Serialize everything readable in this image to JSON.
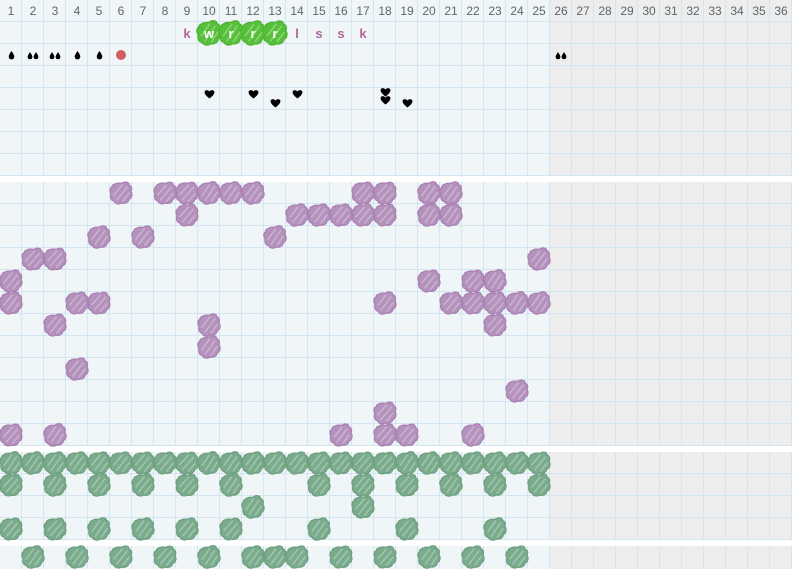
{
  "columns": {
    "count": 36,
    "active": 25,
    "day_numbers": [
      "1",
      "2",
      "3",
      "4",
      "5",
      "6",
      "7",
      "8",
      "9",
      "10",
      "11",
      "12",
      "13",
      "14",
      "15",
      "16",
      "17",
      "18",
      "19",
      "20",
      "21",
      "22",
      "23",
      "24",
      "25",
      "26",
      "27",
      "28",
      "29",
      "30",
      "31",
      "32",
      "33",
      "34",
      "35",
      "36"
    ]
  },
  "colors": {
    "background_active": "#f0f6f8",
    "background_inactive": "#ecedec",
    "grid_line": "#d2e5f0",
    "day_number_text": "#5e666b",
    "letter_text": "#b2649e",
    "fertile_highlight": "#57c03a",
    "bleeding_mark": "#d45f5f",
    "heart_mark": "#df5480",
    "purple_mark": "#b492bc",
    "green_mark": "#7aab8c"
  },
  "icons": {
    "bleeding": "droplet-icon",
    "bleeding_heavy": "circle-icon",
    "intimacy": "heart-icon",
    "entry_mark": "scribble-mark-icon"
  },
  "letter_row": [
    {
      "col": 9,
      "letter": "k",
      "highlighted": false
    },
    {
      "col": 10,
      "letter": "w",
      "highlighted": true
    },
    {
      "col": 11,
      "letter": "r",
      "highlighted": true
    },
    {
      "col": 12,
      "letter": "r",
      "highlighted": true
    },
    {
      "col": 13,
      "letter": "r",
      "highlighted": true
    },
    {
      "col": 14,
      "letter": "l",
      "highlighted": false
    },
    {
      "col": 15,
      "letter": "s",
      "highlighted": false
    },
    {
      "col": 16,
      "letter": "s",
      "highlighted": false
    },
    {
      "col": 17,
      "letter": "k",
      "highlighted": false
    }
  ],
  "bleeding_row": [
    {
      "col": 1,
      "symbol": "drop",
      "count": 1
    },
    {
      "col": 2,
      "symbol": "drop",
      "count": 2
    },
    {
      "col": 3,
      "symbol": "drop",
      "count": 2
    },
    {
      "col": 4,
      "symbol": "drop",
      "count": 1
    },
    {
      "col": 5,
      "symbol": "drop",
      "count": 1
    },
    {
      "col": 6,
      "symbol": "dot",
      "count": 1
    },
    {
      "col": 26,
      "symbol": "drop",
      "count": 2
    }
  ],
  "heart_row": [
    {
      "col": 10,
      "slots": [
        "top"
      ]
    },
    {
      "col": 12,
      "slots": [
        "top"
      ]
    },
    {
      "col": 13,
      "slots": [
        "bottom"
      ]
    },
    {
      "col": 14,
      "slots": [
        "top"
      ]
    },
    {
      "col": 18,
      "slots": [
        "top",
        "bottom"
      ]
    },
    {
      "col": 19,
      "slots": [
        "bottom"
      ]
    }
  ],
  "purple_section": {
    "row_count": 12,
    "rows": [
      {
        "row": 1,
        "cols": [
          6,
          8,
          9,
          10,
          11,
          12,
          17,
          18,
          20,
          21
        ]
      },
      {
        "row": 2,
        "cols": [
          9,
          14,
          15,
          16,
          17,
          18,
          20,
          21
        ]
      },
      {
        "row": 3,
        "cols": [
          5,
          7,
          13
        ]
      },
      {
        "row": 4,
        "cols": [
          2,
          3,
          25
        ]
      },
      {
        "row": 5,
        "cols": [
          1,
          20,
          22,
          23
        ]
      },
      {
        "row": 6,
        "cols": [
          1,
          4,
          5,
          18,
          21,
          22,
          23,
          24,
          25
        ]
      },
      {
        "row": 7,
        "cols": [
          3,
          10,
          23
        ]
      },
      {
        "row": 8,
        "cols": [
          10
        ]
      },
      {
        "row": 9,
        "cols": [
          4
        ]
      },
      {
        "row": 10,
        "cols": [
          24
        ]
      },
      {
        "row": 11,
        "cols": [
          18
        ]
      },
      {
        "row": 12,
        "cols": [
          1,
          3,
          16,
          18,
          19,
          22
        ]
      }
    ]
  },
  "green_section": {
    "row_count": 4,
    "rows": [
      {
        "row": 1,
        "cols": [
          1,
          2,
          3,
          4,
          5,
          6,
          7,
          8,
          9,
          10,
          11,
          12,
          13,
          14,
          15,
          16,
          17,
          18,
          19,
          20,
          21,
          22,
          23,
          24,
          25
        ]
      },
      {
        "row": 2,
        "cols": [
          1,
          3,
          5,
          7,
          9,
          11,
          15,
          17,
          19,
          21,
          23,
          25
        ]
      },
      {
        "row": 3,
        "cols": [
          12,
          17
        ]
      },
      {
        "row": 4,
        "cols": [
          1,
          3,
          5,
          7,
          9,
          11,
          15,
          19,
          23
        ]
      }
    ]
  },
  "footer_section": {
    "row_count": 1,
    "rows": [
      {
        "row": 1,
        "cols": [
          2,
          4,
          6,
          8,
          10,
          12,
          13,
          14,
          16,
          18,
          20,
          22,
          24
        ]
      }
    ]
  }
}
